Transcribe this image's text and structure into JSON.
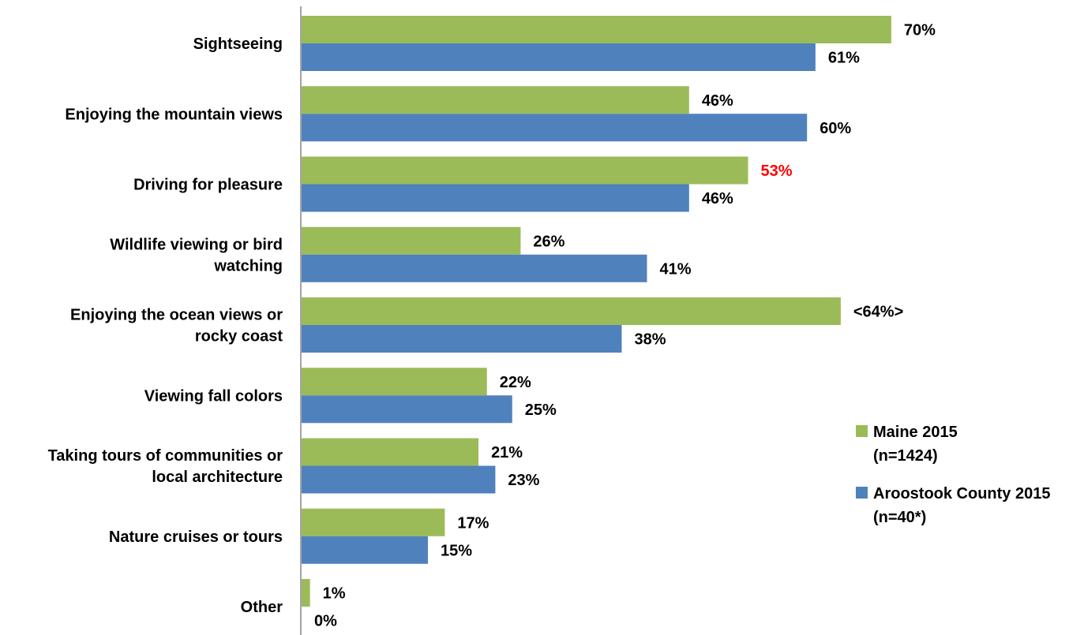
{
  "chart_data": {
    "type": "bar",
    "orientation": "horizontal",
    "categories": [
      [
        "Sightseeing"
      ],
      [
        "Enjoying the mountain views"
      ],
      [
        "Driving for pleasure"
      ],
      [
        "Wildlife viewing or bird",
        "watching"
      ],
      [
        "Enjoying the ocean views or",
        "rocky coast"
      ],
      [
        "Viewing fall colors"
      ],
      [
        "Taking tours of communities or",
        "local architecture"
      ],
      [
        "Nature cruises or tours"
      ],
      [
        "Other"
      ]
    ],
    "series": [
      {
        "name": [
          "Maine 2015",
          "(n=1424)"
        ],
        "color": "#9BBB59",
        "values": [
          70,
          46,
          53,
          26,
          64,
          22,
          21,
          17,
          1
        ],
        "labels": [
          "70%",
          "46%",
          "53%",
          "26%",
          "<64%>",
          "22%",
          "21%",
          "17%",
          "1%"
        ],
        "label_colors": [
          "#000000",
          "#000000",
          "#FF0000",
          "#000000",
          "#000000",
          "#000000",
          "#000000",
          "#000000",
          "#000000"
        ]
      },
      {
        "name": [
          "Aroostook County 2015",
          "(n=40*)"
        ],
        "color": "#4F81BD",
        "values": [
          61,
          60,
          46,
          41,
          38,
          25,
          23,
          15,
          0
        ],
        "labels": [
          "61%",
          "60%",
          "46%",
          "41%",
          "38%",
          "25%",
          "23%",
          "15%",
          "0%"
        ],
        "label_colors": [
          "#000000",
          "#000000",
          "#000000",
          "#000000",
          "#000000",
          "#000000",
          "#000000",
          "#000000",
          "#000000"
        ]
      }
    ],
    "xlim": [
      0,
      100
    ],
    "grid": false,
    "legend_position": "right"
  }
}
